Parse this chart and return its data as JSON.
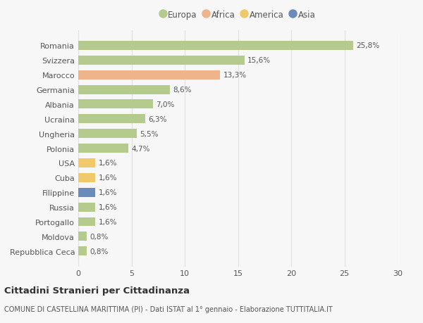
{
  "categories": [
    "Repubblica Ceca",
    "Moldova",
    "Portogallo",
    "Russia",
    "Filippine",
    "Cuba",
    "USA",
    "Polonia",
    "Ungheria",
    "Ucraina",
    "Albania",
    "Germania",
    "Marocco",
    "Svizzera",
    "Romania"
  ],
  "values": [
    0.8,
    0.8,
    1.6,
    1.6,
    1.6,
    1.6,
    1.6,
    4.7,
    5.5,
    6.3,
    7.0,
    8.6,
    13.3,
    15.6,
    25.8
  ],
  "labels": [
    "0,8%",
    "0,8%",
    "1,6%",
    "1,6%",
    "1,6%",
    "1,6%",
    "1,6%",
    "4,7%",
    "5,5%",
    "6,3%",
    "7,0%",
    "8,6%",
    "13,3%",
    "15,6%",
    "25,8%"
  ],
  "colors": [
    "#b5ca8d",
    "#b5ca8d",
    "#b5ca8d",
    "#b5ca8d",
    "#6b8cba",
    "#f0c96a",
    "#f0c96a",
    "#b5ca8d",
    "#b5ca8d",
    "#b5ca8d",
    "#b5ca8d",
    "#b5ca8d",
    "#f0b48a",
    "#b5ca8d",
    "#b5ca8d"
  ],
  "legend_labels": [
    "Europa",
    "Africa",
    "America",
    "Asia"
  ],
  "legend_colors": [
    "#b5ca8d",
    "#f0b48a",
    "#f0c96a",
    "#6b8cba"
  ],
  "title": "Cittadini Stranieri per Cittadinanza",
  "subtitle": "COMUNE DI CASTELLINA MARITTIMA (PI) - Dati ISTAT al 1° gennaio - Elaborazione TUTTITALIA.IT",
  "xlim": [
    0,
    30
  ],
  "xticks": [
    0,
    5,
    10,
    15,
    20,
    25,
    30
  ],
  "bar_height": 0.62,
  "bg_color": "#f7f7f7",
  "grid_color": "#e0e0e0",
  "text_color": "#555555"
}
